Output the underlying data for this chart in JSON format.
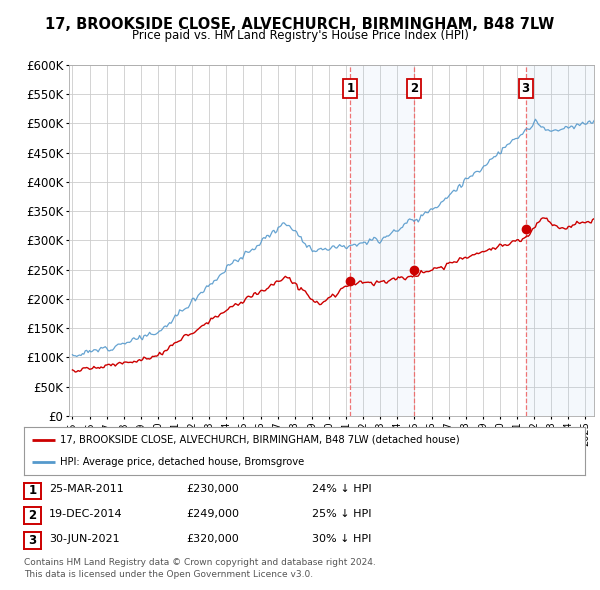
{
  "title": "17, BROOKSIDE CLOSE, ALVECHURCH, BIRMINGHAM, B48 7LW",
  "subtitle": "Price paid vs. HM Land Registry's House Price Index (HPI)",
  "legend_label_red": "17, BROOKSIDE CLOSE, ALVECHURCH, BIRMINGHAM, B48 7LW (detached house)",
  "legend_label_blue": "HPI: Average price, detached house, Bromsgrove",
  "footer1": "Contains HM Land Registry data © Crown copyright and database right 2024.",
  "footer2": "This data is licensed under the Open Government Licence v3.0.",
  "transactions": [
    {
      "num": 1,
      "date": "25-MAR-2011",
      "price": 230000,
      "pct": "24% ↓ HPI",
      "x_year": 2011.25
    },
    {
      "num": 2,
      "date": "19-DEC-2014",
      "price": 249000,
      "pct": "25% ↓ HPI",
      "x_year": 2014.97
    },
    {
      "num": 3,
      "date": "30-JUN-2021",
      "price": 320000,
      "pct": "30% ↓ HPI",
      "x_year": 2021.5
    }
  ],
  "red_color": "#cc0000",
  "blue_color": "#5599cc",
  "vline_color": "#ee6666",
  "label_box_color": "#cc0000",
  "background_color": "#ffffff",
  "grid_color": "#cccccc",
  "ylim": [
    0,
    600000
  ],
  "xlim_start": 1994.8,
  "xlim_end": 2025.5
}
